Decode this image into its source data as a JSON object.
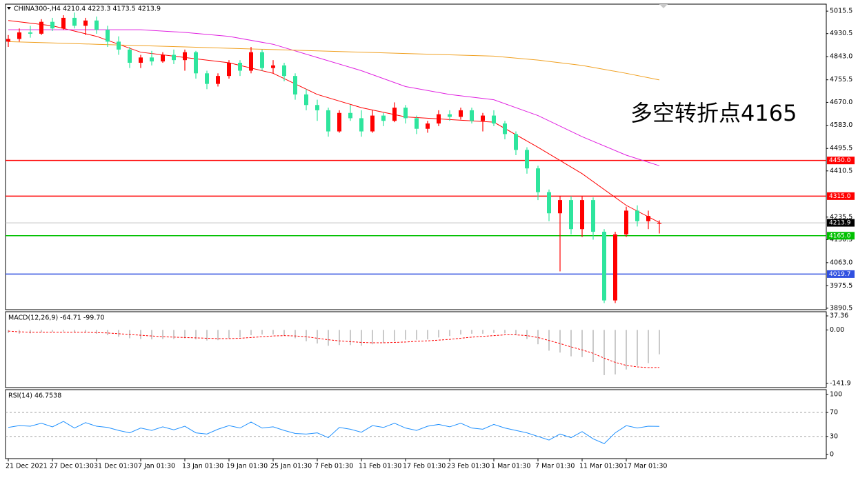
{
  "chart_data": [
    {
      "type": "candlestick",
      "title": "CHINA300-,H4  4210.4 4223.3 4173.5 4213.9",
      "categories": [
        "21 Dec 2021",
        null,
        null,
        null,
        "27 Dec 01:30",
        null,
        null,
        null,
        "31 Dec 01:30",
        null,
        null,
        null,
        "7 Jan 01:30",
        null,
        null,
        null,
        "13 Jan 01:30",
        null,
        null,
        null,
        "19 Jan 01:30",
        null,
        null,
        null,
        "25 Jan 01:30",
        null,
        null,
        null,
        "7 Feb 01:30",
        null,
        null,
        null,
        "11 Feb 01:30",
        null,
        null,
        null,
        "17 Feb 01:30",
        null,
        null,
        null,
        "23 Feb 01:30",
        null,
        null,
        null,
        "1 Mar 01:30",
        null,
        null,
        null,
        "7 Mar 01:30",
        null,
        null,
        null,
        "11 Mar 01:30",
        null,
        null,
        null,
        "17 Mar 01:30",
        null,
        null,
        null
      ],
      "open": [
        4900,
        4910,
        4935,
        4930,
        4975,
        4950,
        4990,
        4960,
        4980,
        4945,
        4900,
        4870,
        4820,
        4840,
        4825,
        4850,
        4830,
        4860,
        4780,
        4740,
        4770,
        4820,
        4790,
        4860,
        4800,
        4810,
        4770,
        4700,
        4660,
        4640,
        4560,
        4630,
        4610,
        4560,
        4620,
        4600,
        4650,
        4610,
        4570,
        4590,
        4625,
        4615,
        4640,
        4600,
        4620,
        4590,
        4550,
        4490,
        4420,
        4330,
        4250,
        4300,
        4190,
        4300,
        4180,
        3920,
        4170,
        4260,
        4220,
        4210.4
      ],
      "high": [
        4925,
        4950,
        4960,
        4985,
        4990,
        5000,
        5010,
        4990,
        4995,
        4960,
        4920,
        4880,
        4850,
        4865,
        4860,
        4870,
        4870,
        4865,
        4790,
        4780,
        4830,
        4830,
        4880,
        4870,
        4830,
        4820,
        4780,
        4720,
        4680,
        4650,
        4640,
        4660,
        4640,
        4640,
        4630,
        4670,
        4660,
        4620,
        4600,
        4640,
        4640,
        4650,
        4650,
        4630,
        4640,
        4600,
        4560,
        4500,
        4430,
        4340,
        4315,
        4315,
        4315,
        4310,
        4190,
        4180,
        4275,
        4280,
        4260,
        4223.3
      ],
      "low": [
        4880,
        4900,
        4915,
        4925,
        4940,
        4945,
        4950,
        4925,
        4930,
        4880,
        4850,
        4800,
        4800,
        4810,
        4820,
        4815,
        4790,
        4760,
        4720,
        4730,
        4760,
        4770,
        4780,
        4790,
        4780,
        4750,
        4680,
        4640,
        4600,
        4540,
        4555,
        4600,
        4540,
        4555,
        4580,
        4595,
        4590,
        4550,
        4555,
        4580,
        4600,
        4605,
        4590,
        4560,
        4580,
        4530,
        4470,
        4400,
        4300,
        4220,
        4030,
        4170,
        4160,
        4150,
        3910,
        3910,
        4160,
        4200,
        4190,
        4173.5
      ],
      "close": [
        4910,
        4935,
        4930,
        4975,
        4950,
        4990,
        4960,
        4980,
        4945,
        4900,
        4870,
        4820,
        4840,
        4825,
        4850,
        4830,
        4860,
        4780,
        4740,
        4770,
        4820,
        4790,
        4860,
        4800,
        4810,
        4770,
        4700,
        4660,
        4640,
        4560,
        4630,
        4610,
        4560,
        4620,
        4600,
        4650,
        4610,
        4570,
        4590,
        4625,
        4615,
        4640,
        4600,
        4620,
        4590,
        4550,
        4490,
        4420,
        4330,
        4250,
        4300,
        4190,
        4300,
        4180,
        3920,
        4170,
        4260,
        4220,
        4240,
        4213.9
      ],
      "up_color": "#ff0000",
      "down_color": "#2ee59d",
      "ylim": [
        3885,
        5042
      ],
      "yticks": [
        5015.5,
        4930.5,
        {
          "value": 4843.0,
          "label": "4843.0"
        },
        4755.5,
        {
          "value": 4670.0,
          "label": "4670.0"
        },
        {
          "value": 4583.0,
          "label": "4583.0"
        },
        4495.5,
        4410.5,
        4235.5,
        4150.5,
        {
          "value": 4063.0,
          "label": "4063.0"
        },
        3975.5,
        3890.5
      ],
      "series": [
        {
          "color": "#ff0000",
          "x": [
            0,
            4,
            8,
            12,
            16,
            20,
            24,
            28,
            32,
            36,
            40,
            44,
            48,
            52,
            56,
            59
          ],
          "values": [
            4980,
            4960,
            4920,
            4860,
            4840,
            4820,
            4780,
            4700,
            4650,
            4615,
            4605,
            4595,
            4500,
            4400,
            4280,
            4215
          ]
        },
        {
          "color": "#e020e0",
          "x": [
            0,
            4,
            8,
            12,
            16,
            20,
            24,
            28,
            32,
            36,
            40,
            44,
            48,
            52,
            56,
            59
          ],
          "values": [
            4945,
            4945,
            4945,
            4945,
            4935,
            4920,
            4890,
            4840,
            4790,
            4730,
            4700,
            4680,
            4620,
            4540,
            4470,
            4430
          ]
        },
        {
          "color": "#f0a020",
          "x": [
            0,
            4,
            8,
            12,
            16,
            20,
            24,
            28,
            32,
            36,
            40,
            44,
            48,
            52,
            56,
            59
          ],
          "values": [
            4900,
            4895,
            4890,
            4885,
            4880,
            4875,
            4870,
            4865,
            4860,
            4855,
            4850,
            4845,
            4830,
            4810,
            4780,
            4755
          ]
        }
      ],
      "levels": [
        {
          "value": 4450.0,
          "label": "4450.0",
          "color": "#ff0000"
        },
        {
          "value": 4315.0,
          "label": "4315.0",
          "color": "#ff0000"
        },
        {
          "value": 4213.9,
          "label": "4213.9",
          "color": "#c0c0c0"
        },
        {
          "value": 4165.0,
          "label": "4165.0",
          "color": "#00c000"
        },
        {
          "value": 4019.7,
          "label": "4019.7",
          "color": "#3050e0"
        }
      ],
      "annotation": "多空转折点4165",
      "annotation_color": "#ff0000"
    },
    {
      "type": "macd",
      "title": "MACD(12,26,9) -64.71 -99.70",
      "histogram": [
        -8,
        -10,
        -9,
        -6,
        -5,
        -4,
        -6,
        -7,
        -10,
        -14,
        -18,
        -22,
        -24,
        -25,
        -24,
        -24,
        -22,
        -25,
        -28,
        -27,
        -22,
        -20,
        -14,
        -12,
        -12,
        -15,
        -22,
        -30,
        -36,
        -42,
        -40,
        -40,
        -42,
        -38,
        -35,
        -30,
        -26,
        -26,
        -25,
        -20,
        -16,
        -12,
        -10,
        -10,
        -8,
        -9,
        -14,
        -24,
        -38,
        -55,
        -60,
        -70,
        -72,
        -85,
        -120,
        -118,
        -105,
        -95,
        -88,
        -64.71
      ],
      "histogram_color": "#b8b8b8",
      "signal": [
        -3,
        -5,
        -6,
        -6,
        -6,
        -6,
        -6,
        -6,
        -7,
        -8,
        -10,
        -12,
        -14,
        -16,
        -18,
        -19,
        -20,
        -21,
        -22,
        -23,
        -23,
        -22,
        -20,
        -18,
        -16,
        -15,
        -16,
        -18,
        -22,
        -26,
        -29,
        -31,
        -33,
        -34,
        -34,
        -33,
        -32,
        -30,
        -29,
        -27,
        -25,
        -22,
        -19,
        -17,
        -15,
        -13,
        -13,
        -15,
        -20,
        -28,
        -36,
        -45,
        -53,
        -62,
        -75,
        -86,
        -94,
        -98,
        -100,
        -99.7
      ],
      "signal_color": "#ff0000",
      "ylim": [
        -153,
        48.4
      ],
      "yticks": [
        37.36,
        {
          "value": 0,
          "label": "0.00"
        },
        -141.9
      ]
    },
    {
      "type": "line",
      "title": "RSI(14) 46.7538",
      "values": [
        45,
        48,
        47,
        52,
        46,
        55,
        44,
        53,
        47,
        45,
        40,
        36,
        44,
        40,
        46,
        41,
        47,
        36,
        34,
        42,
        48,
        44,
        54,
        44,
        46,
        40,
        35,
        34,
        36,
        28,
        45,
        42,
        37,
        48,
        45,
        52,
        44,
        40,
        47,
        50,
        46,
        52,
        44,
        42,
        50,
        44,
        40,
        36,
        30,
        24,
        34,
        28,
        38,
        26,
        18,
        36,
        48,
        44,
        47,
        46.7538
      ],
      "color": "#1e90ff",
      "ylim": [
        -7,
        108
      ],
      "yticks": [
        100,
        70,
        30,
        0
      ],
      "levels": [
        70,
        30
      ]
    }
  ]
}
